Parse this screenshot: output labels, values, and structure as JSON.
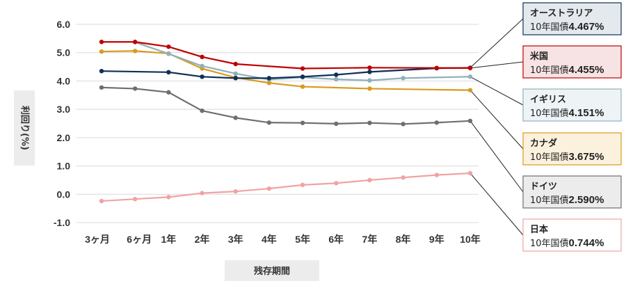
{
  "chart_data": {
    "type": "line",
    "title": "",
    "xlabel": "残存期間",
    "ylabel": "利回り(%)",
    "ylim": [
      -1.0,
      6.0
    ],
    "yticks": [
      "6.0",
      "5.0",
      "4.0",
      "3.0",
      "2.0",
      "1.0",
      "0.0",
      "-1.0"
    ],
    "categories": [
      "3ヶ月",
      "6ヶ月",
      "1年",
      "2年",
      "3年",
      "4年",
      "5年",
      "6年",
      "7年",
      "8年",
      "9年",
      "10年"
    ],
    "legend_prefix": "10年国債",
    "series": [
      {
        "name": "オーストラリア",
        "value_label": "4.467%",
        "color": "#0f2f57",
        "legend_bg": "#e4e9ee",
        "values": [
          4.35,
          null,
          4.31,
          4.15,
          4.1,
          4.1,
          4.15,
          4.22,
          4.32,
          null,
          4.45,
          4.467
        ]
      },
      {
        "name": "米国",
        "value_label": "4.455%",
        "color": "#c00000",
        "legend_bg": "#f7e3e3",
        "values": [
          5.38,
          5.38,
          5.21,
          4.85,
          4.6,
          null,
          4.44,
          null,
          4.47,
          null,
          4.46,
          4.455
        ]
      },
      {
        "name": "イギリス",
        "value_label": "4.151%",
        "color": "#8fb0ba",
        "legend_bg": "#eef3f5",
        "values": [
          null,
          5.37,
          4.96,
          4.53,
          4.26,
          4.05,
          4.13,
          4.06,
          4.02,
          4.1,
          null,
          4.151
        ]
      },
      {
        "name": "カナダ",
        "value_label": "3.675%",
        "color": "#d89b1f",
        "legend_bg": "#fbf1dd",
        "values": [
          5.04,
          5.06,
          4.97,
          4.44,
          4.12,
          3.93,
          3.8,
          null,
          3.73,
          null,
          null,
          3.675
        ]
      },
      {
        "name": "ドイツ",
        "value_label": "2.590%",
        "color": "#6e6e6e",
        "legend_bg": "#ececec",
        "values": [
          3.77,
          3.73,
          3.6,
          2.95,
          2.7,
          2.53,
          2.52,
          2.49,
          2.52,
          2.48,
          2.53,
          2.59
        ]
      },
      {
        "name": "日本",
        "value_label": "0.744%",
        "color": "#f0a3a3",
        "legend_bg": "#ffffff",
        "values": [
          -0.24,
          -0.17,
          -0.1,
          0.04,
          0.1,
          0.2,
          0.33,
          0.39,
          0.5,
          0.59,
          0.68,
          0.744
        ]
      }
    ]
  }
}
